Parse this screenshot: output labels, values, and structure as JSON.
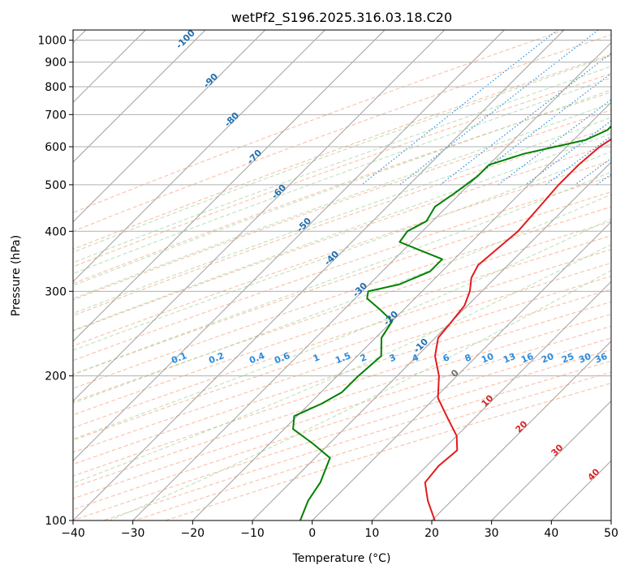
{
  "chart_data": {
    "type": "line",
    "title": "wetPf2_S196.2025.316.03.18.C20",
    "xlabel": "Temperature (°C)",
    "ylabel": "Pressure (hPa)",
    "xlim": [
      -40,
      50
    ],
    "ylim_pressure": [
      1050,
      100
    ],
    "x_ticks": [
      -40,
      -30,
      -20,
      -10,
      0,
      10,
      20,
      30,
      40,
      50
    ],
    "x_tick_labels": [
      "−40",
      "−30",
      "−20",
      "−10",
      "0",
      "10",
      "20",
      "30",
      "40",
      "50"
    ],
    "p_ticks": [
      1000,
      900,
      800,
      700,
      600,
      500,
      400,
      300,
      200,
      100
    ],
    "p_tick_labels": [
      "1000",
      "900",
      "800",
      "700",
      "600",
      "500",
      "400",
      "300",
      "200",
      "100"
    ],
    "grid": true,
    "colors": {
      "temperature": "#e41a1c",
      "dewpoint": "#008000",
      "isotherm": "#a0a0a0",
      "dry_adiabat": "#f4a582",
      "moist_adiabat": "#a6d8a0",
      "mixing_ratio": "#2b8cde",
      "theta_label": "#1f6fb0",
      "theta_e_label": "#d62728"
    },
    "series": [
      {
        "name": "Temperature",
        "points": [
          [
            1000,
            -10.0
          ],
          [
            975,
            -11.0
          ],
          [
            950,
            -11.5
          ],
          [
            925,
            -11.0
          ],
          [
            900,
            -10.5
          ],
          [
            850,
            -9.5
          ],
          [
            800,
            -9.0
          ],
          [
            750,
            -9.0
          ],
          [
            700,
            -11.0
          ],
          [
            650,
            -13.0
          ],
          [
            600,
            -14.5
          ],
          [
            550,
            -15.0
          ],
          [
            500,
            -15.0
          ],
          [
            450,
            -14.5
          ],
          [
            400,
            -14.0
          ],
          [
            370,
            -14.5
          ],
          [
            340,
            -15.0
          ],
          [
            320,
            -14.0
          ],
          [
            300,
            -12.0
          ],
          [
            280,
            -10.5
          ],
          [
            260,
            -10.0
          ],
          [
            240,
            -9.5
          ],
          [
            220,
            -7.0
          ],
          [
            200,
            -3.0
          ],
          [
            180,
            0.5
          ],
          [
            165,
            5.0
          ],
          [
            150,
            10.0
          ],
          [
            140,
            12.5
          ],
          [
            130,
            12.0
          ],
          [
            120,
            12.5
          ],
          [
            110,
            16.0
          ],
          [
            100,
            20.5
          ]
        ]
      },
      {
        "name": "Dewpoint",
        "points": [
          [
            990,
            -12.0
          ],
          [
            960,
            -12.5
          ],
          [
            940,
            -13.0
          ],
          [
            920,
            -15.0
          ],
          [
            900,
            -15.5
          ],
          [
            880,
            -13.5
          ],
          [
            850,
            -14.5
          ],
          [
            800,
            -16.0
          ],
          [
            760,
            -15.5
          ],
          [
            700,
            -16.0
          ],
          [
            650,
            -16.0
          ],
          [
            620,
            -18.0
          ],
          [
            580,
            -26.0
          ],
          [
            550,
            -30.0
          ],
          [
            520,
            -30.0
          ],
          [
            480,
            -31.0
          ],
          [
            450,
            -32.0
          ],
          [
            420,
            -31.0
          ],
          [
            400,
            -32.5
          ],
          [
            380,
            -32.0
          ],
          [
            350,
            -22.0
          ],
          [
            330,
            -22.0
          ],
          [
            310,
            -25.0
          ],
          [
            300,
            -29.0
          ],
          [
            290,
            -28.0
          ],
          [
            275,
            -24.0
          ],
          [
            260,
            -20.0
          ],
          [
            240,
            -19.0
          ],
          [
            220,
            -16.0
          ],
          [
            200,
            -16.5
          ],
          [
            185,
            -16.5
          ],
          [
            175,
            -18.0
          ],
          [
            165,
            -20.5
          ],
          [
            155,
            -18.5
          ],
          [
            145,
            -13.0
          ],
          [
            135,
            -7.5
          ],
          [
            120,
            -5.0
          ],
          [
            110,
            -4.0
          ],
          [
            100,
            -2.0
          ]
        ]
      }
    ],
    "dry_adiabat_labels": [
      "-100",
      "-90",
      "-80",
      "-70",
      "-60",
      "-50",
      "-40",
      "-30",
      "-20",
      "-10",
      "0"
    ],
    "moist_adiabat_labels": [
      "10",
      "20",
      "30",
      "40"
    ],
    "mixing_ratio_labels": [
      "0.1",
      "0.2",
      "0.4",
      "0.6",
      "1",
      "1.5",
      "2",
      "3",
      "4",
      "6",
      "8",
      "10",
      "13",
      "16",
      "20",
      "25",
      "30",
      "36"
    ]
  }
}
